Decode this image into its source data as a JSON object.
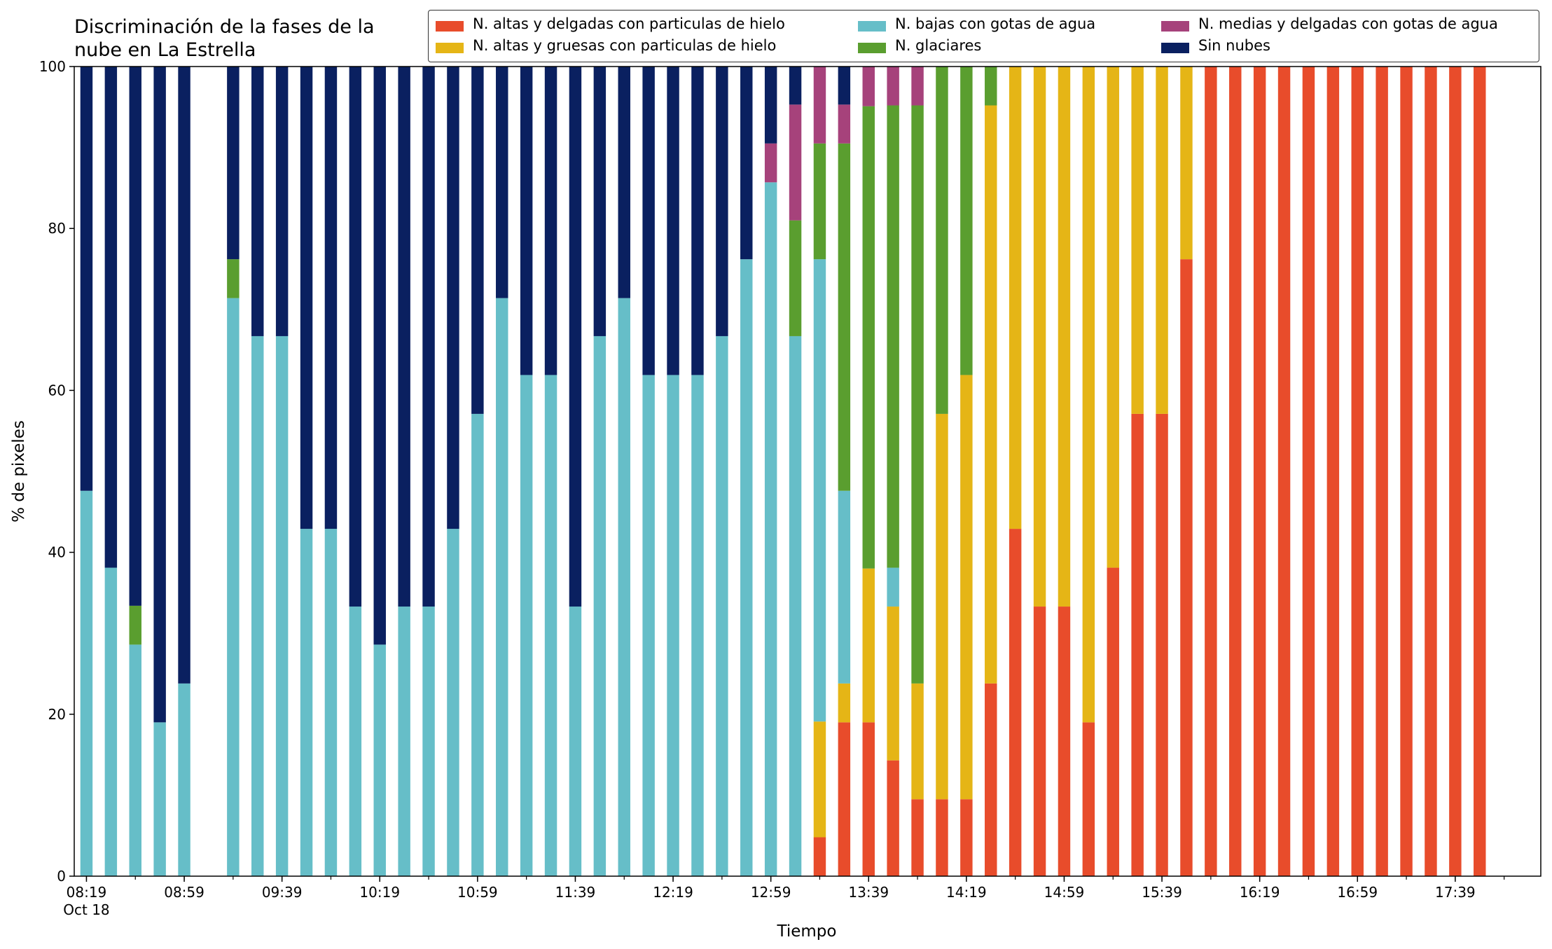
{
  "chart_data": {
    "type": "bar",
    "stacked": true,
    "title": [
      "Discriminación de la fases de la",
      "nube en La Estrella"
    ],
    "xlabel": "Tiempo",
    "ylabel": "% de pixeles",
    "ylim": [
      0,
      100
    ],
    "yticks": [
      0,
      20,
      40,
      60,
      80,
      100
    ],
    "xticks": [
      {
        "label": "08:19",
        "sub": "Oct 18",
        "slot": 0
      },
      {
        "label": "08:59",
        "slot": 4
      },
      {
        "label": "09:39",
        "slot": 8
      },
      {
        "label": "10:19",
        "slot": 12
      },
      {
        "label": "10:59",
        "slot": 16
      },
      {
        "label": "11:39",
        "slot": 20
      },
      {
        "label": "12:19",
        "slot": 24
      },
      {
        "label": "12:59",
        "slot": 28
      },
      {
        "label": "13:39",
        "slot": 32
      },
      {
        "label": "14:19",
        "slot": 36
      },
      {
        "label": "14:59",
        "slot": 40
      },
      {
        "label": "15:39",
        "slot": 44
      },
      {
        "label": "16:19",
        "slot": 48
      },
      {
        "label": "16:59",
        "slot": 52
      },
      {
        "label": "17:39",
        "slot": 56
      }
    ],
    "slot_count": 60,
    "legend_position": "top-right",
    "series": [
      {
        "name": "N. altas y delgadas con particulas de hielo",
        "color": "#e84c2b",
        "key": "ad"
      },
      {
        "name": "N. altas y gruesas con particulas de hielo",
        "color": "#e5b516",
        "key": "ag"
      },
      {
        "name": "N. bajas con gotas de agua",
        "color": "#66bec8",
        "key": "bw"
      },
      {
        "name": "N. glaciares",
        "color": "#5a9e2f",
        "key": "gl"
      },
      {
        "name": "N. medias y delgadas con gotas de agua",
        "color": "#a6427b",
        "key": "md"
      },
      {
        "name": "Sin nubes",
        "color": "#0a2060",
        "key": "sn"
      }
    ],
    "stack_order": [
      "ad",
      "ag",
      "bw",
      "gl",
      "md",
      "sn"
    ],
    "bars": [
      {
        "slot": 0,
        "ad": 0,
        "ag": 0,
        "bw": 47.6,
        "gl": 0,
        "md": 0,
        "sn": 52.4
      },
      {
        "slot": 1,
        "ad": 0,
        "ag": 0,
        "bw": 38.1,
        "gl": 0,
        "md": 0,
        "sn": 61.9
      },
      {
        "slot": 2,
        "ad": 0,
        "ag": 0,
        "bw": 28.6,
        "gl": 4.8,
        "md": 0,
        "sn": 66.6
      },
      {
        "slot": 3,
        "ad": 0,
        "ag": 0,
        "bw": 19.0,
        "gl": 0,
        "md": 0,
        "sn": 81.0
      },
      {
        "slot": 4,
        "ad": 0,
        "ag": 0,
        "bw": 23.8,
        "gl": 0,
        "md": 0,
        "sn": 76.2
      },
      {
        "slot": 6,
        "ad": 0,
        "ag": 0,
        "bw": 71.4,
        "gl": 4.8,
        "md": 0,
        "sn": 23.8
      },
      {
        "slot": 7,
        "ad": 0,
        "ag": 0,
        "bw": 66.7,
        "gl": 0,
        "md": 0,
        "sn": 33.3
      },
      {
        "slot": 8,
        "ad": 0,
        "ag": 0,
        "bw": 66.7,
        "gl": 0,
        "md": 0,
        "sn": 33.3
      },
      {
        "slot": 9,
        "ad": 0,
        "ag": 0,
        "bw": 42.9,
        "gl": 0,
        "md": 0,
        "sn": 57.1
      },
      {
        "slot": 10,
        "ad": 0,
        "ag": 0,
        "bw": 42.9,
        "gl": 0,
        "md": 0,
        "sn": 57.1
      },
      {
        "slot": 11,
        "ad": 0,
        "ag": 0,
        "bw": 33.3,
        "gl": 0,
        "md": 0,
        "sn": 66.7
      },
      {
        "slot": 12,
        "ad": 0,
        "ag": 0,
        "bw": 28.6,
        "gl": 0,
        "md": 0,
        "sn": 71.4
      },
      {
        "slot": 13,
        "ad": 0,
        "ag": 0,
        "bw": 33.3,
        "gl": 0,
        "md": 0,
        "sn": 66.7
      },
      {
        "slot": 14,
        "ad": 0,
        "ag": 0,
        "bw": 33.3,
        "gl": 0,
        "md": 0,
        "sn": 66.7
      },
      {
        "slot": 15,
        "ad": 0,
        "ag": 0,
        "bw": 42.9,
        "gl": 0,
        "md": 0,
        "sn": 57.1
      },
      {
        "slot": 16,
        "ad": 0,
        "ag": 0,
        "bw": 57.1,
        "gl": 0,
        "md": 0,
        "sn": 42.9
      },
      {
        "slot": 17,
        "ad": 0,
        "ag": 0,
        "bw": 71.4,
        "gl": 0,
        "md": 0,
        "sn": 28.6
      },
      {
        "slot": 18,
        "ad": 0,
        "ag": 0,
        "bw": 61.9,
        "gl": 0,
        "md": 0,
        "sn": 38.1
      },
      {
        "slot": 19,
        "ad": 0,
        "ag": 0,
        "bw": 61.9,
        "gl": 0,
        "md": 0,
        "sn": 38.1
      },
      {
        "slot": 20,
        "ad": 0,
        "ag": 0,
        "bw": 33.3,
        "gl": 0,
        "md": 0,
        "sn": 66.7
      },
      {
        "slot": 21,
        "ad": 0,
        "ag": 0,
        "bw": 66.7,
        "gl": 0,
        "md": 0,
        "sn": 33.3
      },
      {
        "slot": 22,
        "ad": 0,
        "ag": 0,
        "bw": 71.4,
        "gl": 0,
        "md": 0,
        "sn": 28.6
      },
      {
        "slot": 23,
        "ad": 0,
        "ag": 0,
        "bw": 61.9,
        "gl": 0,
        "md": 0,
        "sn": 38.1
      },
      {
        "slot": 24,
        "ad": 0,
        "ag": 0,
        "bw": 61.9,
        "gl": 0,
        "md": 0,
        "sn": 38.1
      },
      {
        "slot": 25,
        "ad": 0,
        "ag": 0,
        "bw": 61.9,
        "gl": 0,
        "md": 0,
        "sn": 38.1
      },
      {
        "slot": 26,
        "ad": 0,
        "ag": 0,
        "bw": 66.7,
        "gl": 0,
        "md": 0,
        "sn": 33.3
      },
      {
        "slot": 27,
        "ad": 0,
        "ag": 0,
        "bw": 76.2,
        "gl": 0,
        "md": 0,
        "sn": 23.8
      },
      {
        "slot": 28,
        "ad": 0,
        "ag": 0,
        "bw": 85.7,
        "gl": 0,
        "md": 4.8,
        "sn": 9.5
      },
      {
        "slot": 29,
        "ad": 0,
        "ag": 0,
        "bw": 66.7,
        "gl": 14.3,
        "md": 14.3,
        "sn": 4.7
      },
      {
        "slot": 30,
        "ad": 4.8,
        "ag": 14.3,
        "bw": 57.1,
        "gl": 14.3,
        "md": 9.5,
        "sn": 0
      },
      {
        "slot": 31,
        "ad": 19.0,
        "ag": 4.8,
        "bw": 23.8,
        "gl": 42.9,
        "md": 4.8,
        "sn": 4.7
      },
      {
        "slot": 32,
        "ad": 19.0,
        "ag": 19.0,
        "bw": 0,
        "gl": 57.1,
        "md": 4.9,
        "sn": 0
      },
      {
        "slot": 33,
        "ad": 14.3,
        "ag": 19.0,
        "bw": 4.8,
        "gl": 57.1,
        "md": 4.8,
        "sn": 0
      },
      {
        "slot": 34,
        "ad": 9.5,
        "ag": 14.3,
        "bw": 0,
        "gl": 71.4,
        "md": 4.8,
        "sn": 0
      },
      {
        "slot": 35,
        "ad": 9.5,
        "ag": 47.6,
        "bw": 0,
        "gl": 42.9,
        "md": 0,
        "sn": 0
      },
      {
        "slot": 36,
        "ad": 9.5,
        "ag": 52.4,
        "bw": 0,
        "gl": 38.1,
        "md": 0,
        "sn": 0
      },
      {
        "slot": 37,
        "ad": 23.8,
        "ag": 71.4,
        "bw": 0,
        "gl": 4.8,
        "md": 0,
        "sn": 0
      },
      {
        "slot": 38,
        "ad": 42.9,
        "ag": 57.1,
        "bw": 0,
        "gl": 0,
        "md": 0,
        "sn": 0
      },
      {
        "slot": 39,
        "ad": 33.3,
        "ag": 66.7,
        "bw": 0,
        "gl": 0,
        "md": 0,
        "sn": 0
      },
      {
        "slot": 40,
        "ad": 33.3,
        "ag": 66.7,
        "bw": 0,
        "gl": 0,
        "md": 0,
        "sn": 0
      },
      {
        "slot": 41,
        "ad": 19.0,
        "ag": 81.0,
        "bw": 0,
        "gl": 0,
        "md": 0,
        "sn": 0
      },
      {
        "slot": 42,
        "ad": 38.1,
        "ag": 61.9,
        "bw": 0,
        "gl": 0,
        "md": 0,
        "sn": 0
      },
      {
        "slot": 43,
        "ad": 57.1,
        "ag": 42.9,
        "bw": 0,
        "gl": 0,
        "md": 0,
        "sn": 0
      },
      {
        "slot": 44,
        "ad": 57.1,
        "ag": 42.9,
        "bw": 0,
        "gl": 0,
        "md": 0,
        "sn": 0
      },
      {
        "slot": 45,
        "ad": 76.2,
        "ag": 23.8,
        "bw": 0,
        "gl": 0,
        "md": 0,
        "sn": 0
      },
      {
        "slot": 46,
        "ad": 100,
        "ag": 0,
        "bw": 0,
        "gl": 0,
        "md": 0,
        "sn": 0
      },
      {
        "slot": 47,
        "ad": 100,
        "ag": 0,
        "bw": 0,
        "gl": 0,
        "md": 0,
        "sn": 0
      },
      {
        "slot": 48,
        "ad": 100,
        "ag": 0,
        "bw": 0,
        "gl": 0,
        "md": 0,
        "sn": 0
      },
      {
        "slot": 49,
        "ad": 100,
        "ag": 0,
        "bw": 0,
        "gl": 0,
        "md": 0,
        "sn": 0
      },
      {
        "slot": 50,
        "ad": 100,
        "ag": 0,
        "bw": 0,
        "gl": 0,
        "md": 0,
        "sn": 0
      },
      {
        "slot": 51,
        "ad": 100,
        "ag": 0,
        "bw": 0,
        "gl": 0,
        "md": 0,
        "sn": 0
      },
      {
        "slot": 52,
        "ad": 100,
        "ag": 0,
        "bw": 0,
        "gl": 0,
        "md": 0,
        "sn": 0
      },
      {
        "slot": 53,
        "ad": 100,
        "ag": 0,
        "bw": 0,
        "gl": 0,
        "md": 0,
        "sn": 0
      },
      {
        "slot": 54,
        "ad": 100,
        "ag": 0,
        "bw": 0,
        "gl": 0,
        "md": 0,
        "sn": 0
      },
      {
        "slot": 55,
        "ad": 100,
        "ag": 0,
        "bw": 0,
        "gl": 0,
        "md": 0,
        "sn": 0
      },
      {
        "slot": 56,
        "ad": 100,
        "ag": 0,
        "bw": 0,
        "gl": 0,
        "md": 0,
        "sn": 0
      },
      {
        "slot": 57,
        "ad": 100,
        "ag": 0,
        "bw": 0,
        "gl": 0,
        "md": 0,
        "sn": 0
      }
    ]
  }
}
